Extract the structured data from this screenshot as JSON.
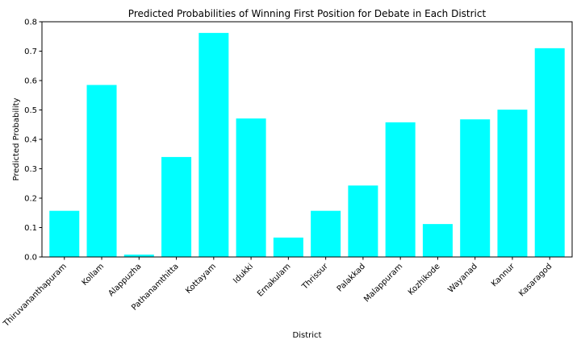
{
  "chart_data": {
    "type": "bar",
    "title": "Predicted Probabilities of Winning First Position for Debate in Each District",
    "xlabel": "District",
    "ylabel": "Predicted Probability",
    "categories": [
      "Thiruvananthapuram",
      "Kollam",
      "Alappuzha",
      "Pathanamthitta",
      "Kottayam",
      "Idukki",
      "Ernakulam",
      "Thrissur",
      "Palakkad",
      "Malappuram",
      "Kozhikode",
      "Wayanad",
      "Kannur",
      "Kasaragod"
    ],
    "values": [
      0.157,
      0.585,
      0.008,
      0.34,
      0.762,
      0.471,
      0.066,
      0.157,
      0.243,
      0.458,
      0.112,
      0.468,
      0.501,
      0.71
    ],
    "ylim": [
      0,
      0.8
    ],
    "yticks": [
      0.0,
      0.1,
      0.2,
      0.3,
      0.4,
      0.5,
      0.6,
      0.7,
      0.8
    ],
    "ytick_labels": [
      "0.0",
      "0.1",
      "0.2",
      "0.3",
      "0.4",
      "0.5",
      "0.6",
      "0.7",
      "0.8"
    ],
    "bar_color": "#00ffff",
    "grid": false,
    "legend": "none"
  }
}
